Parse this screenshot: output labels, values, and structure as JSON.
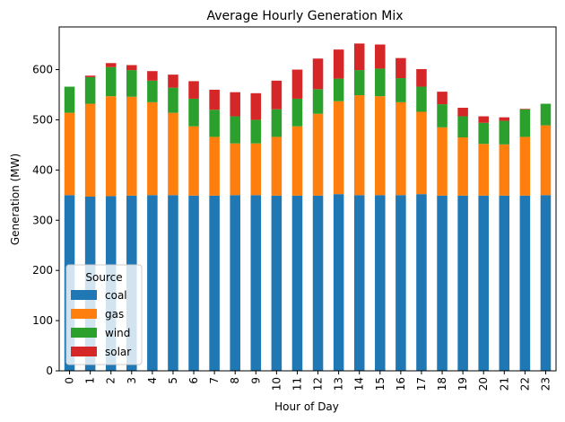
{
  "chart_data": {
    "type": "bar",
    "stacked": true,
    "title": "Average Hourly Generation Mix",
    "xlabel": "Hour of Day",
    "ylabel": "Generation (MW)",
    "ylim": [
      0,
      685
    ],
    "yticks": [
      0,
      100,
      200,
      300,
      400,
      500,
      600
    ],
    "grid": false,
    "categories": [
      "0",
      "1",
      "2",
      "3",
      "4",
      "5",
      "6",
      "7",
      "8",
      "9",
      "10",
      "11",
      "12",
      "13",
      "14",
      "15",
      "16",
      "17",
      "18",
      "19",
      "20",
      "21",
      "22",
      "23"
    ],
    "series": [
      {
        "name": "coal",
        "color": "#1f77b4",
        "values": [
          350,
          347,
          348,
          349,
          350,
          350,
          349,
          349,
          350,
          350,
          349,
          349,
          349,
          352,
          350,
          350,
          350,
          352,
          349,
          349,
          349,
          349,
          349,
          350
        ]
      },
      {
        "name": "gas",
        "color": "#ff7f0e",
        "values": [
          164,
          185,
          199,
          197,
          185,
          164,
          138,
          117,
          103,
          103,
          117,
          138,
          163,
          185,
          199,
          197,
          185,
          164,
          136,
          116,
          103,
          102,
          117,
          139
        ]
      },
      {
        "name": "wind",
        "color": "#2ca02c",
        "values": [
          52,
          53,
          58,
          53,
          43,
          50,
          55,
          54,
          54,
          47,
          55,
          55,
          49,
          45,
          50,
          55,
          48,
          50,
          46,
          42,
          42,
          47,
          55,
          43
        ]
      },
      {
        "name": "solar",
        "color": "#d62728",
        "values": [
          0,
          3,
          8,
          10,
          19,
          26,
          35,
          40,
          48,
          53,
          57,
          58,
          61,
          58,
          53,
          48,
          40,
          35,
          25,
          17,
          13,
          7,
          1,
          0
        ]
      }
    ],
    "legend": {
      "title": "Source",
      "position": "lower-left"
    }
  }
}
